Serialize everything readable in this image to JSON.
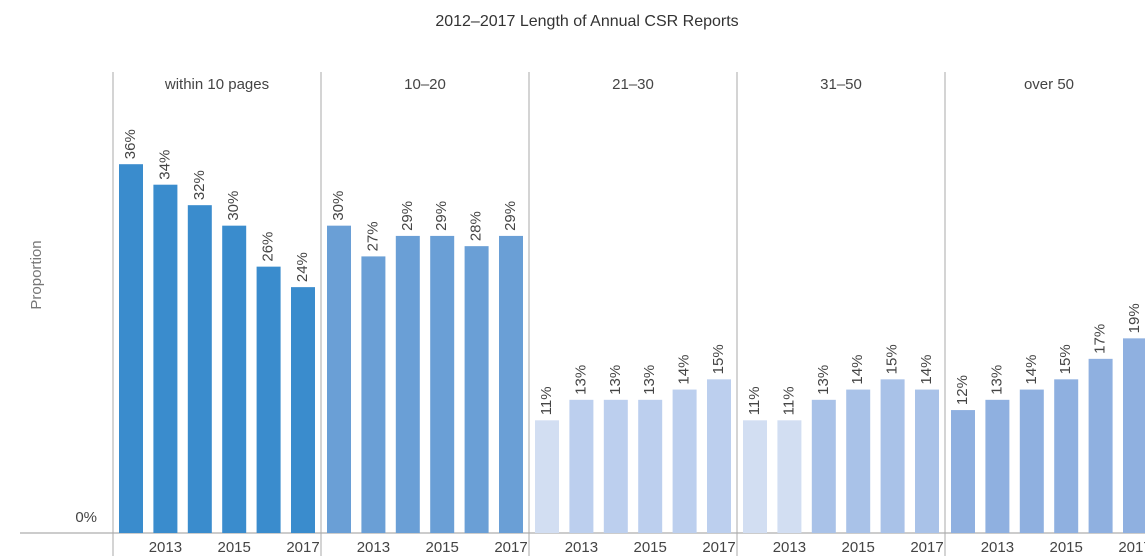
{
  "chart_data": {
    "type": "bar",
    "title": "2012–2017 Length of Annual CSR Reports",
    "y_label": "Proportion",
    "ylim": [
      0,
      45
    ],
    "yticks": [
      {
        "value": 0,
        "label": "0%"
      }
    ],
    "categories": [
      null,
      "2013",
      null,
      "2015",
      null,
      "2017"
    ],
    "facets": [
      {
        "name": "within 10 pages",
        "values": [
          36,
          34,
          32,
          30,
          26,
          24
        ],
        "value_labels": [
          "36%",
          "34%",
          "32%",
          "30%",
          "26%",
          "24%"
        ],
        "colors": [
          "#3a8ccd",
          "#3a8ccd",
          "#3a8ccd",
          "#3a8ccd",
          "#3a8ccd",
          "#3a8ccd"
        ]
      },
      {
        "name": "10–20",
        "values": [
          30,
          27,
          29,
          29,
          28,
          29
        ],
        "value_labels": [
          "30%",
          "27%",
          "29%",
          "29%",
          "28%",
          "29%"
        ],
        "colors": [
          "#6a9fd6",
          "#6a9fd6",
          "#6a9fd6",
          "#6a9fd6",
          "#6a9fd6",
          "#6a9fd6"
        ]
      },
      {
        "name": "21–30",
        "values": [
          11,
          13,
          13,
          13,
          14,
          15
        ],
        "value_labels": [
          "11%",
          "13%",
          "13%",
          "13%",
          "14%",
          "15%"
        ],
        "colors": [
          "#d2def2",
          "#bccfee",
          "#bccfee",
          "#bccfee",
          "#bccfee",
          "#bccfee"
        ]
      },
      {
        "name": "31–50",
        "values": [
          11,
          11,
          13,
          14,
          15,
          14
        ],
        "value_labels": [
          "11%",
          "11%",
          "13%",
          "14%",
          "15%",
          "14%"
        ],
        "colors": [
          "#d2def2",
          "#d2def2",
          "#a9c2e8",
          "#a9c2e8",
          "#a9c2e8",
          "#a9c2e8"
        ]
      },
      {
        "name": "over 50",
        "values": [
          12,
          13,
          14,
          15,
          17,
          19
        ],
        "value_labels": [
          "12%",
          "13%",
          "14%",
          "15%",
          "17%",
          "19%"
        ],
        "colors": [
          "#8fb0e0",
          "#8fb0e0",
          "#8fb0e0",
          "#8fb0e0",
          "#8fb0e0",
          "#8fb0e0"
        ]
      }
    ]
  }
}
